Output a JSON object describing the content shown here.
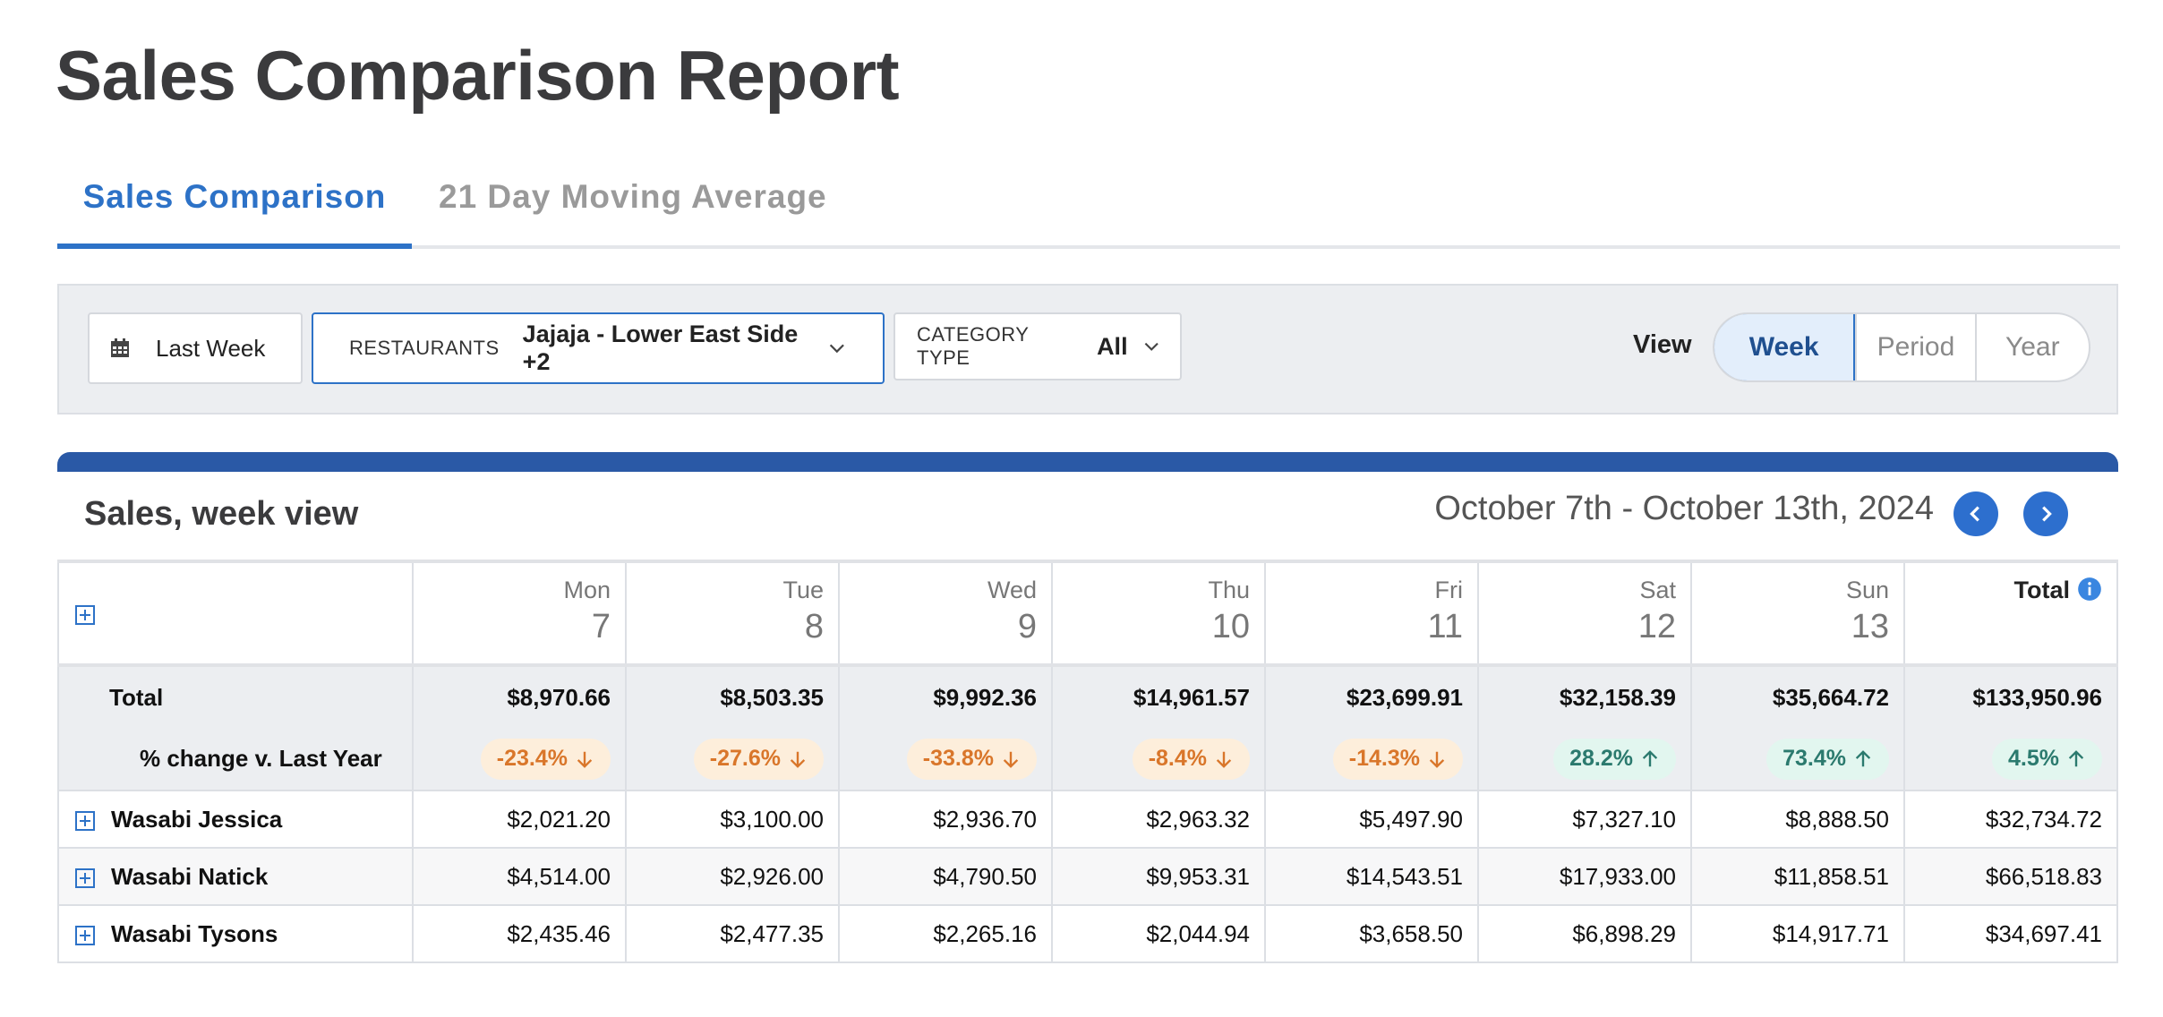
{
  "page": {
    "title": "Sales Comparison Report"
  },
  "tabs": [
    {
      "label": "Sales Comparison",
      "active": true
    },
    {
      "label": "21 Day Moving Average",
      "active": false
    }
  ],
  "filters": {
    "date_range": "Last Week",
    "restaurants_label": "RESTAURANTS",
    "restaurants_value": "Jajaja - Lower East Side +2",
    "category_label": "CATEGORY TYPE",
    "category_value": "All"
  },
  "view": {
    "label": "View",
    "options": [
      "Week",
      "Period",
      "Year"
    ],
    "selected": "Week"
  },
  "card": {
    "title": "Sales, week view",
    "date_range": "October 7th - October 13th, 2024",
    "accent_color": "#2a59a6"
  },
  "table": {
    "columns": [
      {
        "dow": "Mon",
        "day": "7"
      },
      {
        "dow": "Tue",
        "day": "8"
      },
      {
        "dow": "Wed",
        "day": "9"
      },
      {
        "dow": "Thu",
        "day": "10"
      },
      {
        "dow": "Fri",
        "day": "11"
      },
      {
        "dow": "Sat",
        "day": "12"
      },
      {
        "dow": "Sun",
        "day": "13"
      }
    ],
    "total_header": "Total",
    "total_row": {
      "label": "Total",
      "values": [
        "$8,970.66",
        "$8,503.35",
        "$9,992.36",
        "$14,961.57",
        "$23,699.91",
        "$32,158.39",
        "$35,664.72",
        "$133,950.96"
      ]
    },
    "pct_row": {
      "label": "% change v. Last Year",
      "values": [
        {
          "text": "-23.4%",
          "dir": "down"
        },
        {
          "text": "-27.6%",
          "dir": "down"
        },
        {
          "text": "-33.8%",
          "dir": "down"
        },
        {
          "text": "-8.4%",
          "dir": "down"
        },
        {
          "text": "-14.3%",
          "dir": "down"
        },
        {
          "text": "28.2%",
          "dir": "up"
        },
        {
          "text": "73.4%",
          "dir": "up"
        },
        {
          "text": "4.5%",
          "dir": "up"
        }
      ]
    },
    "rows": [
      {
        "name": "Wasabi Jessica",
        "values": [
          "$2,021.20",
          "$3,100.00",
          "$2,936.70",
          "$2,963.32",
          "$5,497.90",
          "$7,327.10",
          "$8,888.50",
          "$32,734.72"
        ]
      },
      {
        "name": "Wasabi Natick",
        "values": [
          "$4,514.00",
          "$2,926.00",
          "$4,790.50",
          "$9,953.31",
          "$14,543.51",
          "$17,933.00",
          "$11,858.51",
          "$66,518.83"
        ]
      },
      {
        "name": "Wasabi Tysons",
        "values": [
          "$2,435.46",
          "$2,477.35",
          "$2,265.16",
          "$2,044.94",
          "$3,658.50",
          "$6,898.29",
          "$14,917.71",
          "$34,697.41"
        ]
      }
    ]
  },
  "colors": {
    "accent": "#2d72c7",
    "down": "#d9762a",
    "up": "#2b7a6e"
  }
}
